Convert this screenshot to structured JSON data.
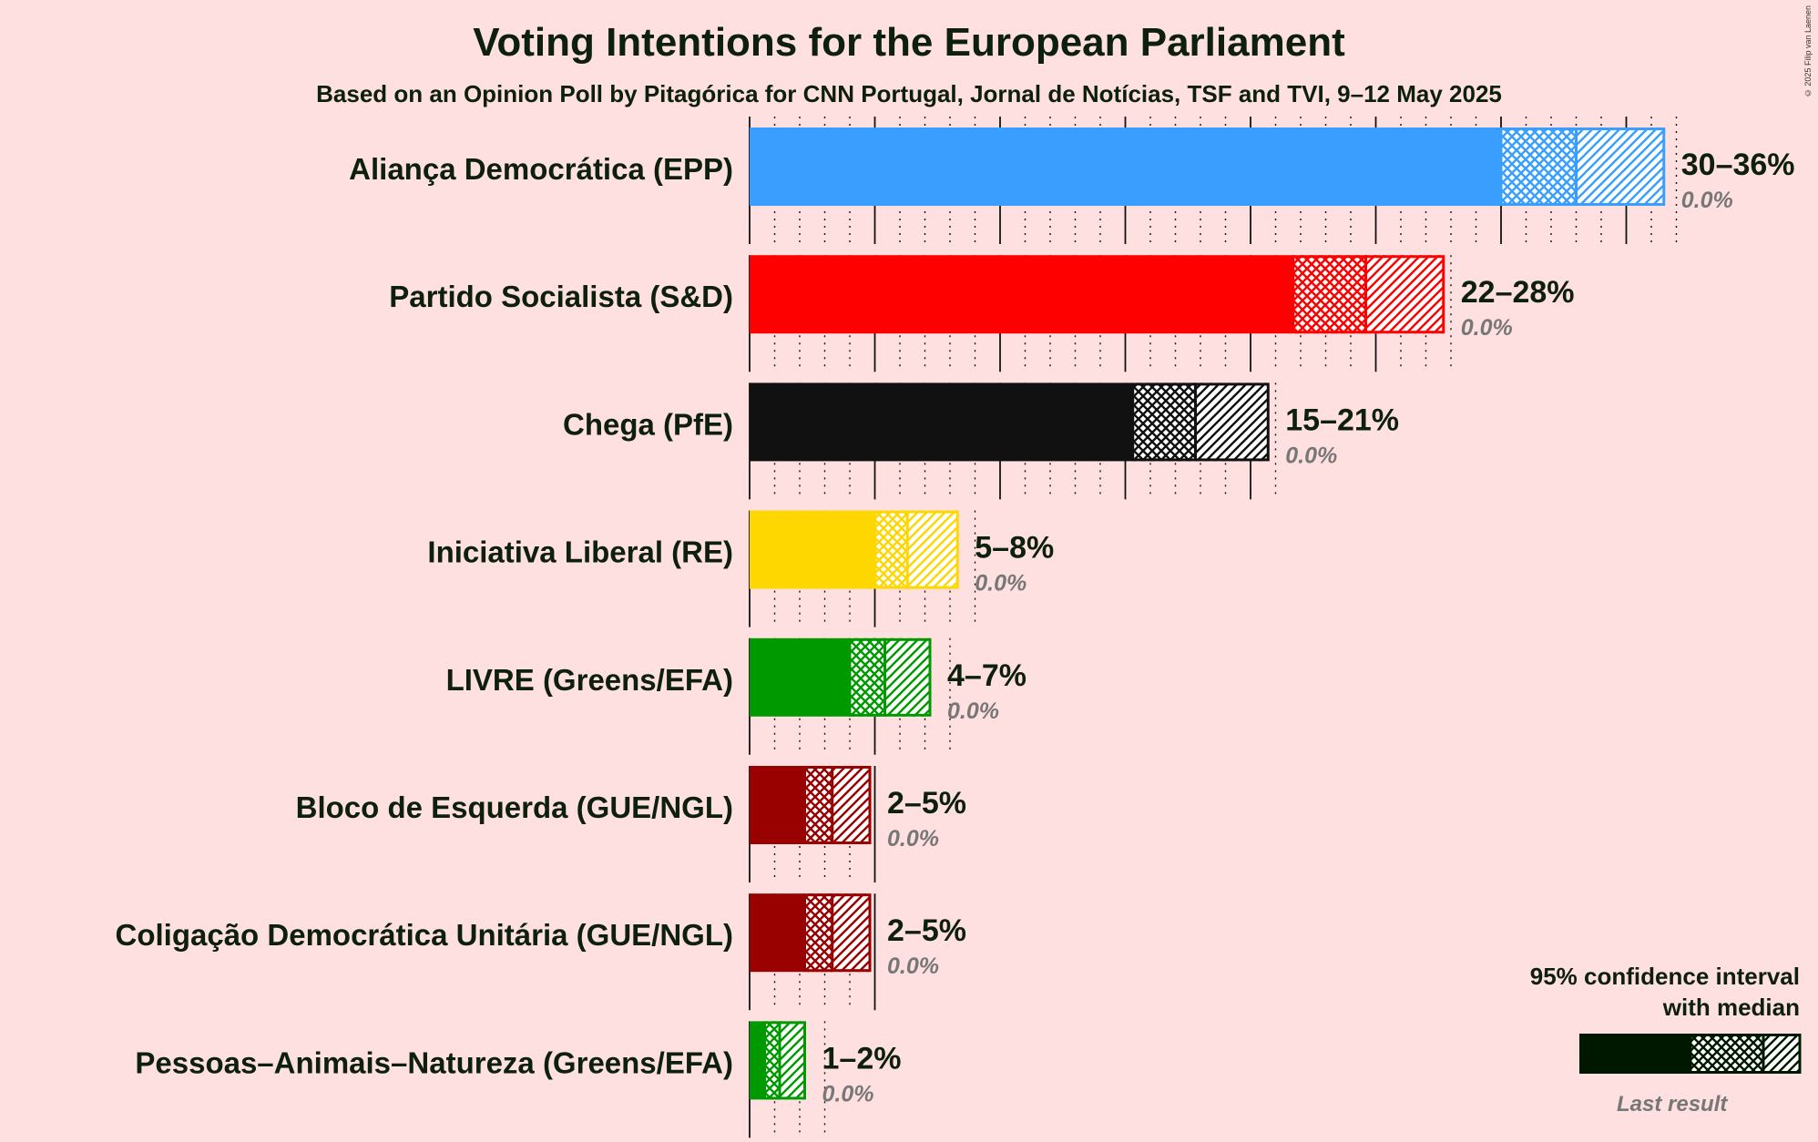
{
  "title": "Voting Intentions for the European Parliament",
  "subtitle": "Based on an Opinion Poll by Pitagórica for CNN Portugal, Jornal de Notícias, TSF and TVI, 9–12 May 2025",
  "copyright": "© 2025 Filip van Laenen",
  "legend": {
    "title_line1": "95% confidence interval",
    "title_line2": "with median",
    "last_result": "Last result"
  },
  "chart_data": {
    "type": "bar",
    "orientation": "horizontal",
    "title": "Voting Intentions for the European Parliament",
    "subtitle": "Based on an Opinion Poll by Pitagórica for CNN Portugal, Jornal de Notícias, TSF and TVI, 9–12 May 2025",
    "xlim": [
      0,
      37
    ],
    "unit": "%",
    "series": [
      {
        "party": "Aliança Democrática (EPP)",
        "low": 30,
        "median": 33,
        "high": 36.5,
        "range_label": "30–36%",
        "last_result": "0.0%",
        "color": "#3A9EFF"
      },
      {
        "party": "Partido Socialista (S&D)",
        "low": 21.7,
        "median": 24.6,
        "high": 27.7,
        "range_label": "22–28%",
        "last_result": "0.0%",
        "color": "#FF0000"
      },
      {
        "party": "Chega (PfE)",
        "low": 15.3,
        "median": 17.8,
        "high": 20.7,
        "range_label": "15–21%",
        "last_result": "0.0%",
        "color": "#111111"
      },
      {
        "party": "Iniciativa Liberal (RE)",
        "low": 5,
        "median": 6.3,
        "high": 8.3,
        "range_label": "5–8%",
        "last_result": "0.0%",
        "color": "#FFD700"
      },
      {
        "party": "LIVRE (Greens/EFA)",
        "low": 4,
        "median": 5.4,
        "high": 7.2,
        "range_label": "4–7%",
        "last_result": "0.0%",
        "color": "#009900"
      },
      {
        "party": "Bloco de Esquerda (GUE/NGL)",
        "low": 2.2,
        "median": 3.3,
        "high": 4.8,
        "range_label": "2–5%",
        "last_result": "0.0%",
        "color": "#990000"
      },
      {
        "party": "Coligação Democrática Unitária (GUE/NGL)",
        "low": 2.2,
        "median": 3.3,
        "high": 4.8,
        "range_label": "2–5%",
        "last_result": "0.0%",
        "color": "#990000"
      },
      {
        "party": "Pessoas–Animais–Natureza (Greens/EFA)",
        "low": 0.6,
        "median": 1.2,
        "high": 2.2,
        "range_label": "1–2%",
        "last_result": "0.0%",
        "color": "#009900"
      }
    ]
  }
}
